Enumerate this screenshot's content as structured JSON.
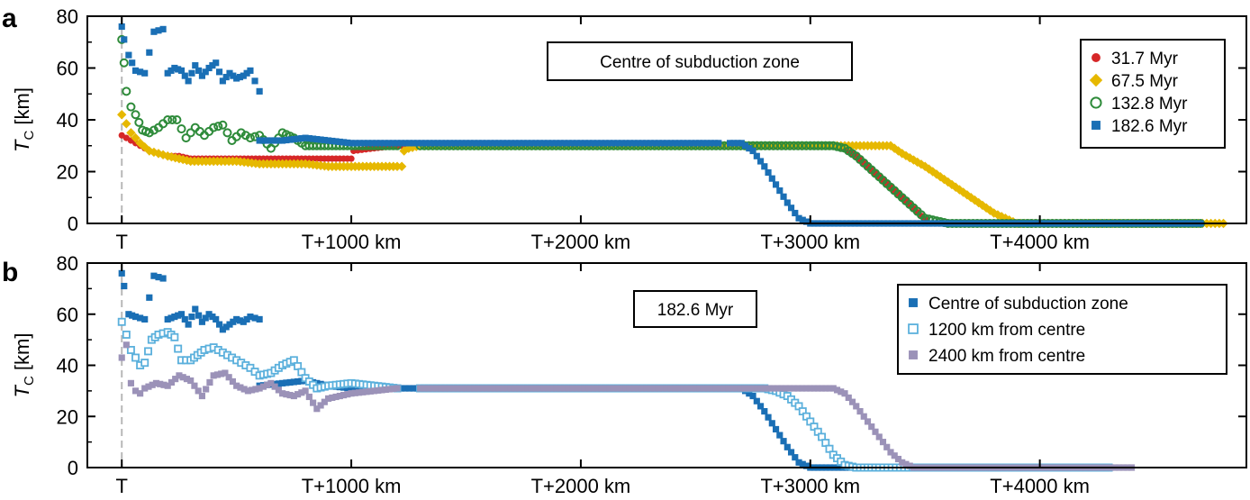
{
  "chart_data": [
    {
      "type": "scatter",
      "panel_label": "a",
      "ylabel": "T",
      "ylabel_sub": "C",
      "ylabel_unit": " [km]",
      "annotation": "Centre of subduction zone",
      "xlim": [
        -150,
        4900
      ],
      "ylim": [
        0,
        80
      ],
      "yticks": [
        0,
        20,
        40,
        60,
        80
      ],
      "xticks": [
        {
          "value": 0,
          "label": "T"
        },
        {
          "value": 1000,
          "label": "T+1000 km"
        },
        {
          "value": 2000,
          "label": "T+2000 km"
        },
        {
          "value": 3000,
          "label": "T+3000 km"
        },
        {
          "value": 4000,
          "label": "T+4000 km"
        }
      ],
      "grid": false,
      "legend_position": "top-right",
      "series": [
        {
          "name": "31.7 Myr",
          "marker": "circle-filled",
          "color": "#d62728",
          "segments": [
            {
              "x": [
                0,
                40,
                80,
                120,
                160,
                200,
                250,
                300,
                400,
                500,
                600,
                700,
                800,
                900,
                1000
              ],
              "y": [
                34,
                32,
                30,
                28,
                27,
                26,
                26,
                25,
                25,
                25,
                25,
                25,
                25,
                25,
                25
              ]
            },
            {
              "x": [
                1010,
                1100,
                1200,
                1300,
                1500,
                2000,
                2500,
                3000,
                3100,
                3150,
                3200,
                3300,
                3400,
                3520,
                3600,
                4000,
                4400,
                4700
              ],
              "y": [
                28,
                29,
                30,
                30,
                30,
                30,
                30,
                30,
                30,
                29,
                26,
                18,
                10,
                0,
                0,
                0,
                0,
                0
              ]
            }
          ]
        },
        {
          "name": "67.5 Myr",
          "marker": "diamond",
          "color": "#e6b800",
          "segments": [
            {
              "x": [
                0,
                40,
                80,
                120,
                160,
                200,
                250,
                300,
                400,
                500,
                600,
                700,
                800,
                900,
                1000,
                1100,
                1200,
                1220
              ],
              "y": [
                42,
                35,
                31,
                28,
                27,
                26,
                25,
                24,
                24,
                24,
                23,
                23,
                23,
                22,
                22,
                22,
                22,
                22
              ]
            },
            {
              "x": [
                1230,
                1250,
                1300,
                1500,
                2000,
                2500,
                3000,
                3100,
                3200,
                3300,
                3350,
                3400,
                3500,
                3600,
                3700,
                3800,
                3900,
                3950,
                4000,
                4300,
                4600,
                4800
              ],
              "y": [
                28,
                29,
                30,
                30,
                30,
                30,
                30,
                30,
                30,
                30,
                30,
                27,
                22,
                16,
                10,
                4,
                0,
                0,
                0,
                0,
                0,
                0
              ]
            }
          ]
        },
        {
          "name": "132.8 Myr",
          "marker": "circle-open",
          "color": "#2e8b3a",
          "segments": [
            {
              "x": [
                0,
                10,
                20,
                40,
                60,
                90,
                120,
                160,
                200,
                240,
                280,
                320,
                360,
                400,
                440,
                480,
                520,
                560,
                600,
                650,
                700,
                750,
                800,
                900,
                1000,
                1100,
                1200
              ],
              "y": [
                71,
                62,
                51,
                45,
                42,
                36,
                35,
                37,
                40,
                40,
                33,
                37,
                34,
                37,
                38,
                32,
                35,
                33,
                34,
                29,
                35,
                33,
                30,
                30,
                30,
                30,
                30
              ]
            },
            {
              "x": [
                1300,
                1500,
                2000,
                2500,
                3000,
                3100,
                3150,
                3200,
                3300,
                3400,
                3500,
                3600,
                4000,
                4400,
                4700
              ],
              "y": [
                30,
                30,
                30,
                30,
                30,
                30,
                29,
                26,
                18,
                10,
                2,
                0,
                0,
                0,
                0
              ]
            }
          ]
        },
        {
          "name": "182.6 Myr",
          "marker": "square-filled",
          "color": "#1a6fb5",
          "segments": [
            {
              "x": [
                0,
                10,
                30,
                60,
                100,
                140,
                180,
                200,
                230,
                260,
                290,
                320,
                350,
                380,
                410,
                440,
                470,
                500,
                530,
                560,
                600
              ],
              "y": [
                76,
                71,
                65,
                59,
                58,
                74,
                75,
                58,
                60,
                59,
                55,
                61,
                57,
                60,
                62,
                55,
                58,
                56,
                57,
                59,
                51
              ]
            },
            {
              "x": [
                600,
                700,
                800,
                900,
                1000,
                1200,
                1500,
                2000,
                2500,
                2600
              ],
              "y": [
                32,
                32,
                33,
                32,
                31,
                31,
                31,
                31,
                31,
                31
              ]
            },
            {
              "x": [
                2650,
                2700,
                2750,
                2800,
                2850,
                2900,
                2950,
                3000,
                3050,
                3500,
                4000,
                4400,
                4700
              ],
              "y": [
                31,
                31,
                28,
                22,
                15,
                8,
                2,
                0,
                0,
                0,
                0,
                0,
                0
              ]
            }
          ]
        }
      ]
    },
    {
      "type": "scatter",
      "panel_label": "b",
      "ylabel": "T",
      "ylabel_sub": "C",
      "ylabel_unit": " [km]",
      "annotation": "182.6 Myr",
      "xlim": [
        -150,
        4900
      ],
      "ylim": [
        0,
        80
      ],
      "yticks": [
        0,
        20,
        40,
        60,
        80
      ],
      "xticks": [
        {
          "value": 0,
          "label": "T"
        },
        {
          "value": 1000,
          "label": "T+1000 km"
        },
        {
          "value": 2000,
          "label": "T+2000 km"
        },
        {
          "value": 3000,
          "label": "T+3000 km"
        },
        {
          "value": 4000,
          "label": "T+4000 km"
        }
      ],
      "grid": false,
      "legend_position": "top-right",
      "series": [
        {
          "name": "Centre of subduction zone",
          "marker": "square-filled",
          "color": "#1a6fb5",
          "segments": [
            {
              "x": [
                0,
                10,
                30,
                60,
                100,
                140,
                180,
                200,
                230,
                260,
                290,
                320,
                350,
                380,
                410,
                440,
                470,
                500,
                530,
                560,
                600
              ],
              "y": [
                76,
                71,
                60,
                59,
                58,
                75,
                74,
                58,
                59,
                60,
                56,
                62,
                57,
                60,
                58,
                54,
                56,
                58,
                57,
                59,
                58
              ]
            },
            {
              "x": [
                600,
                700,
                800,
                900,
                1000,
                1200,
                1500,
                2000,
                2500,
                2600
              ],
              "y": [
                32,
                33,
                34,
                32,
                31,
                31,
                31,
                31,
                31,
                31
              ]
            },
            {
              "x": [
                2650,
                2700,
                2750,
                2800,
                2850,
                2900,
                2950,
                3000,
                3050,
                3500,
                4000,
                4300
              ],
              "y": [
                31,
                31,
                28,
                22,
                15,
                8,
                2,
                0,
                0,
                0,
                0,
                0
              ]
            }
          ]
        },
        {
          "name": "1200 km from centre",
          "marker": "square-open",
          "color": "#5bb0dc",
          "segments": [
            {
              "x": [
                0,
                20,
                40,
                60,
                80,
                100,
                130,
                160,
                200,
                230,
                260,
                300,
                330,
                360,
                400,
                440,
                480,
                520,
                560,
                600,
                650,
                700,
                750,
                800,
                850,
                900,
                1000,
                1100,
                1200
              ],
              "y": [
                57,
                52,
                46,
                43,
                40,
                41,
                50,
                52,
                53,
                51,
                42,
                42,
                44,
                46,
                47,
                45,
                43,
                41,
                39,
                36,
                37,
                40,
                42,
                35,
                31,
                32,
                33,
                32,
                31
              ]
            },
            {
              "x": [
                1300,
                1500,
                2000,
                2500,
                2800,
                2850,
                2900,
                2950,
                3000,
                3050,
                3100,
                3150,
                3200,
                3250,
                3300,
                3500,
                4000,
                4300
              ],
              "y": [
                31,
                31,
                31,
                31,
                31,
                30,
                28,
                24,
                18,
                12,
                5,
                1,
                0,
                0,
                0,
                0,
                0,
                0
              ]
            }
          ]
        },
        {
          "name": "2400 km from centre",
          "marker": "square-filled",
          "color": "#9b92b8",
          "segments": [
            {
              "x": [
                0,
                20,
                40,
                60,
                80,
                100,
                150,
                200,
                250,
                300,
                350,
                400,
                450,
                500,
                550,
                600,
                650,
                700,
                750,
                800,
                850,
                900,
                1000,
                1100,
                1200
              ],
              "y": [
                43,
                48,
                33,
                30,
                29,
                31,
                33,
                32,
                36,
                34,
                28,
                36,
                37,
                32,
                30,
                31,
                33,
                29,
                28,
                30,
                23,
                27,
                29,
                30,
                31
              ]
            },
            {
              "x": [
                1300,
                1500,
                2000,
                2500,
                3000,
                3050,
                3100,
                3150,
                3200,
                3250,
                3300,
                3350,
                3400,
                3450,
                3500,
                3600,
                3800,
                4000,
                4200,
                4400
              ],
              "y": [
                31,
                31,
                31,
                31,
                31,
                31,
                31,
                29,
                24,
                18,
                12,
                6,
                2,
                0,
                0,
                0,
                0,
                0,
                0,
                0
              ]
            }
          ]
        }
      ]
    }
  ]
}
